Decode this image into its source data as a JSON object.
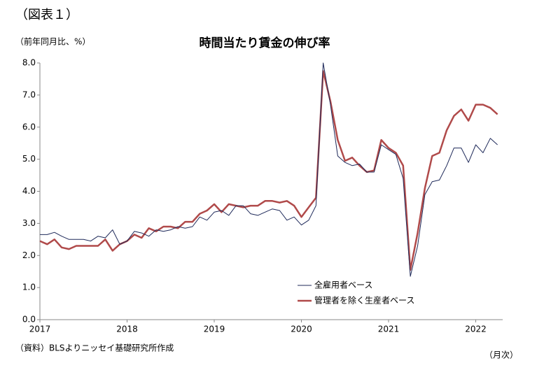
{
  "chart_data": {
    "type": "line",
    "figure_label": "（図表１）",
    "title": "時間当たり賃金の伸び率",
    "y_label": "（前年同月比、%）",
    "x_label": "（月次）",
    "source": "（資料）BLSよりニッセイ基礎研究所作成",
    "categories": [
      "2017",
      null,
      null,
      null,
      null,
      null,
      null,
      null,
      null,
      null,
      null,
      null,
      "2018",
      null,
      null,
      null,
      null,
      null,
      null,
      null,
      null,
      null,
      null,
      null,
      "2019",
      null,
      null,
      null,
      null,
      null,
      null,
      null,
      null,
      null,
      null,
      null,
      "2020",
      null,
      null,
      null,
      null,
      null,
      null,
      null,
      null,
      null,
      null,
      null,
      "2021",
      null,
      null,
      null,
      null,
      null,
      null,
      null,
      null,
      null,
      null,
      null,
      "2022",
      null,
      null,
      null
    ],
    "series": [
      {
        "name": "全雇用者ベース",
        "color": "#1f2a5a",
        "width": 1,
        "values": [
          2.65,
          2.65,
          2.72,
          2.6,
          2.5,
          2.5,
          2.5,
          2.45,
          2.6,
          2.55,
          2.8,
          2.35,
          2.45,
          2.75,
          2.7,
          2.6,
          2.8,
          2.75,
          2.8,
          2.9,
          2.85,
          2.9,
          3.2,
          3.1,
          3.35,
          3.4,
          3.25,
          3.55,
          3.55,
          3.3,
          3.25,
          3.35,
          3.45,
          3.4,
          3.1,
          3.2,
          2.95,
          3.1,
          3.55,
          8.0,
          6.7,
          5.1,
          4.9,
          4.8,
          4.85,
          4.6,
          4.6,
          5.45,
          5.3,
          5.15,
          4.4,
          1.35,
          2.3,
          3.9,
          4.3,
          4.35,
          4.8,
          5.35,
          5.35,
          4.9,
          5.45,
          5.2,
          5.65,
          5.45
        ]
      },
      {
        "name": "管理者を除く生産者ベース",
        "color": "#b04a4a",
        "width": 2.5,
        "values": [
          2.45,
          2.35,
          2.5,
          2.25,
          2.2,
          2.3,
          2.3,
          2.3,
          2.3,
          2.5,
          2.15,
          2.35,
          2.45,
          2.65,
          2.55,
          2.85,
          2.75,
          2.9,
          2.9,
          2.85,
          3.05,
          3.05,
          3.3,
          3.4,
          3.6,
          3.35,
          3.6,
          3.55,
          3.5,
          3.55,
          3.55,
          3.7,
          3.7,
          3.65,
          3.7,
          3.55,
          3.2,
          3.5,
          3.8,
          7.75,
          6.8,
          5.6,
          4.95,
          5.05,
          4.8,
          4.6,
          4.65,
          5.6,
          5.35,
          5.2,
          4.8,
          1.55,
          2.7,
          4.1,
          5.1,
          5.2,
          5.9,
          6.35,
          6.55,
          6.2,
          6.7,
          6.7,
          6.6,
          6.4
        ]
      }
    ],
    "ylim": [
      0,
      8
    ],
    "yticks": [
      {
        "value": 0,
        "label": "0.0"
      },
      {
        "value": 1,
        "label": "1.0"
      },
      {
        "value": 2,
        "label": "2.0"
      },
      {
        "value": 3,
        "label": "3.0"
      },
      {
        "value": 4,
        "label": "4.0"
      },
      {
        "value": 5,
        "label": "5.0"
      },
      {
        "value": 6,
        "label": "6.0"
      },
      {
        "value": 7,
        "label": "7.0"
      },
      {
        "value": 8,
        "label": "8.0"
      }
    ],
    "grid": false,
    "legend": "lower-right"
  }
}
